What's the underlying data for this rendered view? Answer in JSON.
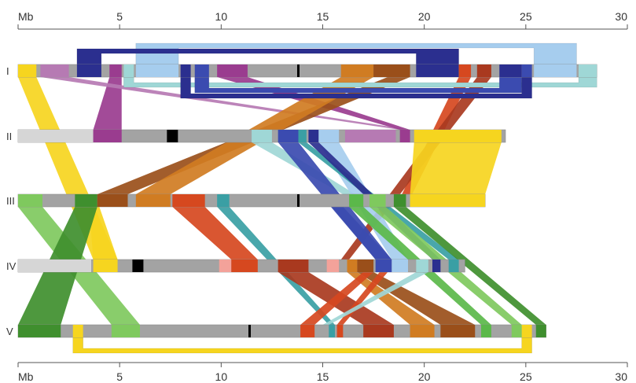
{
  "axis": {
    "unit": "Mb",
    "min": 0,
    "max": 30,
    "ticks": [
      0,
      5,
      10,
      15,
      20,
      25,
      30
    ],
    "tick_labels": [
      "",
      "5",
      "10",
      "15",
      "20",
      "25",
      "30"
    ]
  },
  "colors": {
    "chrom_fill": "#a3a3a3",
    "chrom_light": "#d6d6d6",
    "centromere": "#000000",
    "yellow": "#f6d51f",
    "purple": "#9a3c8f",
    "mauve": "#b67ab3",
    "navy": "#2b2f8f",
    "blue": "#3b4bb0",
    "lightblue": "#a6cdee",
    "cyan": "#9fd7d6",
    "teal": "#3a9fa4",
    "orange": "#d07c22",
    "brown": "#9a4f1a",
    "red": "#d6481f",
    "darkred": "#a9391f",
    "salmon": "#f3a29a",
    "green": "#5bb84a",
    "lightgreen": "#7fc95e",
    "darkgreen": "#3f8f2e"
  },
  "chromosomes": [
    {
      "name": "I",
      "length": 28.5,
      "segments": [
        {
          "from": 0,
          "to": 0.9,
          "color": "yellow"
        },
        {
          "from": 1.1,
          "to": 2.5,
          "color": "mauve"
        },
        {
          "from": 2.9,
          "to": 4.1,
          "color": "navy"
        },
        {
          "from": 4.5,
          "to": 5.1,
          "color": "purple"
        },
        {
          "from": 5.2,
          "to": 5.7,
          "color": "cyan"
        },
        {
          "from": 5.8,
          "to": 7.9,
          "color": "lightblue"
        },
        {
          "from": 8.0,
          "to": 8.5,
          "color": "navy"
        },
        {
          "from": 8.7,
          "to": 9.4,
          "color": "blue"
        },
        {
          "from": 9.8,
          "to": 11.3,
          "color": "purple"
        },
        {
          "from": 15.9,
          "to": 17.5,
          "color": "orange"
        },
        {
          "from": 17.5,
          "to": 19.3,
          "color": "brown"
        },
        {
          "from": 19.6,
          "to": 21.7,
          "color": "navy"
        },
        {
          "from": 21.7,
          "to": 22.3,
          "color": "red"
        },
        {
          "from": 22.6,
          "to": 23.3,
          "color": "darkred"
        },
        {
          "from": 23.7,
          "to": 24.8,
          "color": "navy"
        },
        {
          "from": 24.8,
          "to": 25.3,
          "color": "blue"
        },
        {
          "from": 25.4,
          "to": 27.5,
          "color": "lightblue"
        },
        {
          "from": 27.6,
          "to": 28.5,
          "color": "cyan"
        }
      ],
      "centromeres": [
        13.8
      ]
    },
    {
      "name": "II",
      "length": 24.0,
      "segments": [
        {
          "from": 0,
          "to": 3.7,
          "color": "chrom_light"
        },
        {
          "from": 3.7,
          "to": 5.1,
          "color": "purple"
        },
        {
          "from": 11.5,
          "to": 12.5,
          "color": "cyan"
        },
        {
          "from": 12.8,
          "to": 13.8,
          "color": "blue"
        },
        {
          "from": 13.8,
          "to": 14.2,
          "color": "teal"
        },
        {
          "from": 14.3,
          "to": 14.8,
          "color": "navy"
        },
        {
          "from": 14.8,
          "to": 15.8,
          "color": "lightblue"
        },
        {
          "from": 16.1,
          "to": 18.6,
          "color": "mauve"
        },
        {
          "from": 18.8,
          "to": 19.3,
          "color": "purple"
        },
        {
          "from": 19.5,
          "to": 23.8,
          "color": "yellow"
        }
      ],
      "centromeres": [
        7.6
      ]
    },
    {
      "name": "III",
      "length": 23.0,
      "segments": [
        {
          "from": 0,
          "to": 1.2,
          "color": "lightgreen"
        },
        {
          "from": 2.8,
          "to": 3.9,
          "color": "darkgreen"
        },
        {
          "from": 3.9,
          "to": 5.4,
          "color": "brown"
        },
        {
          "from": 5.8,
          "to": 7.5,
          "color": "orange"
        },
        {
          "from": 7.6,
          "to": 9.2,
          "color": "red"
        },
        {
          "from": 9.8,
          "to": 10.4,
          "color": "teal"
        },
        {
          "from": 16.3,
          "to": 17.0,
          "color": "green"
        },
        {
          "from": 17.3,
          "to": 18.1,
          "color": "lightgreen"
        },
        {
          "from": 18.5,
          "to": 19.1,
          "color": "darkgreen"
        },
        {
          "from": 19.3,
          "to": 23.0,
          "color": "yellow"
        }
      ],
      "centromeres": [
        13.8
      ]
    },
    {
      "name": "IV",
      "length": 22.0,
      "segments": [
        {
          "from": 0,
          "to": 3.6,
          "color": "chrom_light"
        },
        {
          "from": 3.7,
          "to": 4.9,
          "color": "yellow"
        },
        {
          "from": 9.9,
          "to": 10.5,
          "color": "salmon"
        },
        {
          "from": 10.5,
          "to": 11.8,
          "color": "red"
        },
        {
          "from": 12.8,
          "to": 14.3,
          "color": "darkred"
        },
        {
          "from": 15.2,
          "to": 15.8,
          "color": "salmon"
        },
        {
          "from": 16.2,
          "to": 16.7,
          "color": "orange"
        },
        {
          "from": 16.7,
          "to": 17.5,
          "color": "brown"
        },
        {
          "from": 17.6,
          "to": 18.4,
          "color": "blue"
        },
        {
          "from": 18.4,
          "to": 19.2,
          "color": "lightblue"
        },
        {
          "from": 19.6,
          "to": 20.2,
          "color": "cyan"
        },
        {
          "from": 20.4,
          "to": 20.8,
          "color": "navy"
        },
        {
          "from": 21.2,
          "to": 21.7,
          "color": "teal"
        }
      ],
      "centromeres": [
        5.9
      ]
    },
    {
      "name": "V",
      "length": 26.0,
      "segments": [
        {
          "from": 0,
          "to": 2.1,
          "color": "darkgreen"
        },
        {
          "from": 2.7,
          "to": 3.2,
          "color": "yellow"
        },
        {
          "from": 4.6,
          "to": 6.0,
          "color": "lightgreen"
        },
        {
          "from": 13.9,
          "to": 14.6,
          "color": "red"
        },
        {
          "from": 15.3,
          "to": 15.6,
          "color": "teal"
        },
        {
          "from": 15.7,
          "to": 16.0,
          "color": "red"
        },
        {
          "from": 17.0,
          "to": 18.5,
          "color": "darkred"
        },
        {
          "from": 19.3,
          "to": 20.5,
          "color": "orange"
        },
        {
          "from": 20.8,
          "to": 22.5,
          "color": "brown"
        },
        {
          "from": 22.8,
          "to": 23.3,
          "color": "green"
        },
        {
          "from": 24.3,
          "to": 24.8,
          "color": "lightgreen"
        },
        {
          "from": 24.8,
          "to": 25.3,
          "color": "yellow"
        },
        {
          "from": 25.5,
          "to": 26.0,
          "color": "darkgreen"
        }
      ],
      "centromeres": [
        11.4
      ]
    }
  ],
  "links": [
    {
      "color": "yellow",
      "from_chr": "I",
      "from": [
        0,
        0.9
      ],
      "to_chr": "IV",
      "to": [
        3.7,
        4.9
      ]
    },
    {
      "color": "purple",
      "from_chr": "I",
      "from": [
        4.5,
        5.1
      ],
      "to_chr": "II",
      "to": [
        3.7,
        5.1
      ]
    },
    {
      "color": "mauve",
      "from_chr": "I",
      "from": [
        1.1,
        2.5
      ],
      "to_chr": "II",
      "to": [
        18.8,
        19.3
      ]
    },
    {
      "color": "purple",
      "from_chr": "I",
      "from": [
        9.8,
        11.3
      ],
      "to_chr": "II",
      "to": [
        18.8,
        19.3
      ]
    },
    {
      "color": "brown",
      "from_chr": "I",
      "from": [
        18.2,
        19.3
      ],
      "to_chr": "III",
      "to": [
        3.9,
        5.4
      ]
    },
    {
      "color": "orange",
      "from_chr": "I",
      "from": [
        15.9,
        17.5
      ],
      "to_chr": "III",
      "to": [
        5.8,
        7.5
      ]
    },
    {
      "color": "red",
      "from_chr": "I",
      "from": [
        21.7,
        22.3
      ],
      "to_chr": "III",
      "to": [
        18.9,
        19.4
      ]
    },
    {
      "color": "darkred",
      "from_chr": "I",
      "from": [
        22.6,
        23.3
      ],
      "to_chr": "IV",
      "to": [
        15.9,
        16.3
      ]
    },
    {
      "color": "yellow",
      "from_chr": "II",
      "from": [
        19.5,
        23.8
      ],
      "to_chr": "III",
      "to": [
        19.3,
        23.0
      ]
    },
    {
      "color": "cyan",
      "from_chr": "II",
      "from": [
        11.5,
        12.5
      ],
      "to_chr": "III",
      "to": [
        16.0,
        16.6
      ]
    },
    {
      "color": "blue",
      "from_chr": "II",
      "from": [
        12.8,
        13.8
      ],
      "to_chr": "IV",
      "to": [
        17.6,
        18.4
      ]
    },
    {
      "color": "lightblue",
      "from_chr": "II",
      "from": [
        14.8,
        15.8
      ],
      "to_chr": "IV",
      "to": [
        18.4,
        19.2
      ]
    },
    {
      "color": "teal",
      "from_chr": "II",
      "from": [
        13.8,
        14.2
      ],
      "to_chr": "IV",
      "to": [
        21.2,
        21.7
      ]
    },
    {
      "color": "navy",
      "from_chr": "II",
      "from": [
        14.3,
        14.8
      ],
      "to_chr": "IV",
      "to": [
        20.4,
        20.8
      ]
    },
    {
      "color": "yellow",
      "from_chr": "III",
      "from": [
        3.5,
        4.0
      ],
      "to_chr": "IV",
      "to": [
        3.7,
        4.9
      ]
    },
    {
      "color": "lightgreen",
      "from_chr": "III",
      "from": [
        0,
        1.2
      ],
      "to_chr": "V",
      "to": [
        4.6,
        6.0
      ]
    },
    {
      "color": "darkgreen",
      "from_chr": "III",
      "from": [
        2.8,
        3.9
      ],
      "to_chr": "V",
      "to": [
        0,
        2.1
      ]
    },
    {
      "color": "red",
      "from_chr": "III",
      "from": [
        7.6,
        9.2
      ],
      "to_chr": "IV",
      "to": [
        10.5,
        11.8
      ]
    },
    {
      "color": "teal",
      "from_chr": "III",
      "from": [
        9.8,
        10.4
      ],
      "to_chr": "V",
      "to": [
        15.3,
        15.6
      ]
    },
    {
      "color": "green",
      "from_chr": "III",
      "from": [
        16.3,
        17.0
      ],
      "to_chr": "V",
      "to": [
        22.8,
        23.3
      ]
    },
    {
      "color": "lightgreen",
      "from_chr": "III",
      "from": [
        17.3,
        18.1
      ],
      "to_chr": "V",
      "to": [
        24.3,
        24.8
      ]
    },
    {
      "color": "darkgreen",
      "from_chr": "III",
      "from": [
        18.5,
        19.1
      ],
      "to_chr": "V",
      "to": [
        25.5,
        26.0
      ]
    },
    {
      "color": "blue",
      "from_chr": "III",
      "from": [
        15.4,
        16.0
      ],
      "to_chr": "IV",
      "to": [
        17.6,
        18.4
      ]
    },
    {
      "color": "darkred",
      "from_chr": "IV",
      "from": [
        12.8,
        14.3
      ],
      "to_chr": "V",
      "to": [
        17.0,
        18.5
      ]
    },
    {
      "color": "orange",
      "from_chr": "IV",
      "from": [
        16.2,
        16.7
      ],
      "to_chr": "V",
      "to": [
        19.3,
        20.5
      ]
    },
    {
      "color": "brown",
      "from_chr": "IV",
      "from": [
        16.7,
        17.5
      ],
      "to_chr": "V",
      "to": [
        20.8,
        22.5
      ]
    },
    {
      "color": "red",
      "from_chr": "IV",
      "from": [
        17.0,
        17.5
      ],
      "to_chr": "V",
      "to": [
        13.9,
        14.6
      ]
    },
    {
      "color": "red",
      "from_chr": "IV",
      "from": [
        17.8,
        18.2
      ],
      "to_chr": "V",
      "to": [
        15.7,
        16.0
      ]
    },
    {
      "color": "cyan",
      "from_chr": "IV",
      "from": [
        19.6,
        20.2
      ],
      "to_chr": "V",
      "to": [
        15.0,
        15.3
      ]
    }
  ],
  "arcs": [
    {
      "chr": "I",
      "color": "lightblue",
      "from": [
        5.8,
        7.9
      ],
      "to": [
        25.4,
        27.5
      ],
      "side": "above",
      "level": 3
    },
    {
      "chr": "I",
      "color": "navy",
      "from": [
        2.9,
        4.1
      ],
      "to": [
        19.6,
        21.7
      ],
      "side": "above",
      "level": 2
    },
    {
      "chr": "I",
      "color": "cyan",
      "from": [
        5.2,
        5.7
      ],
      "to": [
        27.6,
        28.5
      ],
      "side": "below",
      "level": 1
    },
    {
      "chr": "I",
      "color": "blue",
      "from": [
        8.7,
        9.4
      ],
      "to": [
        23.7,
        24.8
      ],
      "side": "below",
      "level": 2
    },
    {
      "chr": "I",
      "color": "navy",
      "from": [
        8.0,
        8.5
      ],
      "to": [
        24.8,
        25.3
      ],
      "side": "below",
      "level": 3
    },
    {
      "chr": "V",
      "color": "yellow",
      "from": [
        2.7,
        3.2
      ],
      "to": [
        24.8,
        25.3
      ],
      "side": "below",
      "level": 2
    }
  ]
}
